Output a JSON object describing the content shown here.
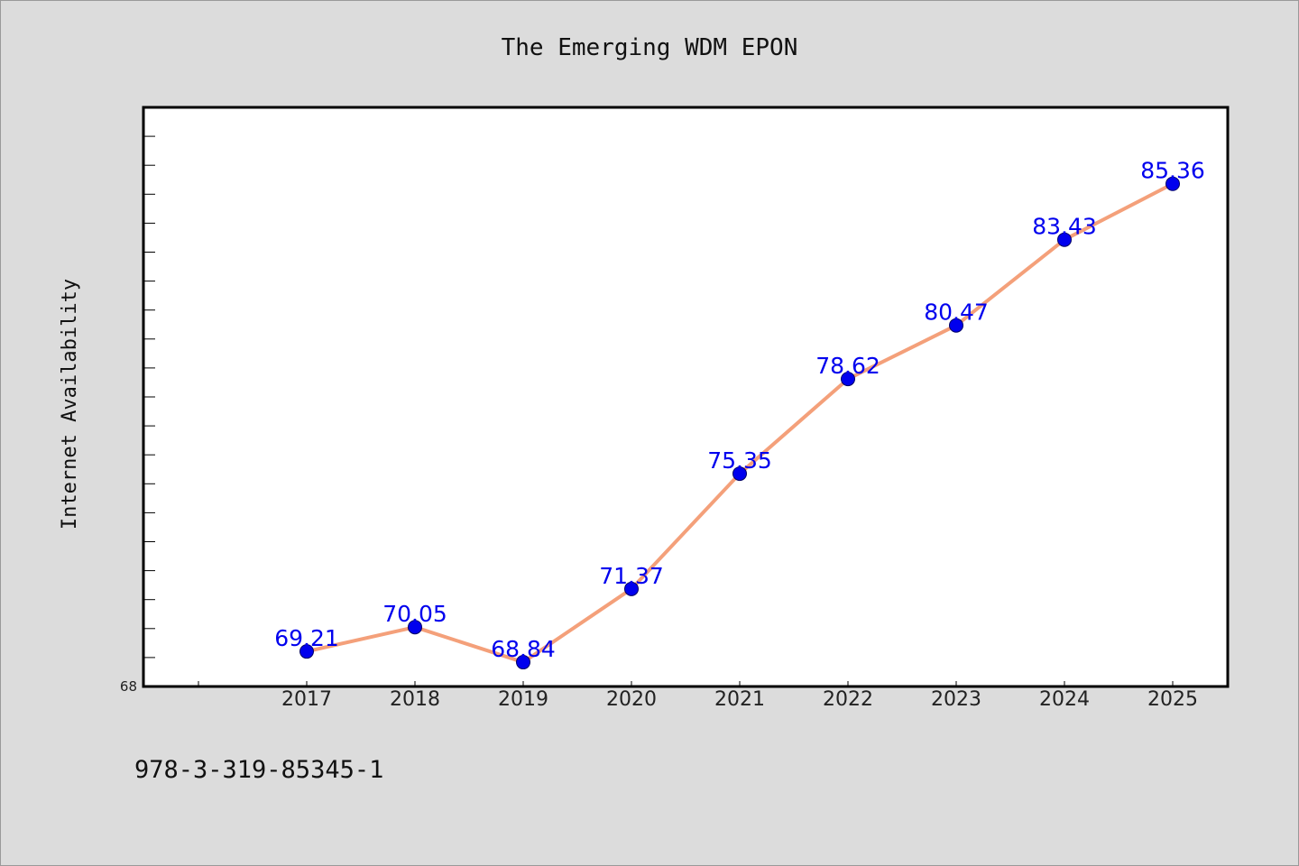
{
  "chart_data": {
    "type": "line",
    "title": "The Emerging WDM EPON",
    "xlabel": "",
    "ylabel": "Internet Availability",
    "categories": [
      "2017",
      "2018",
      "2019",
      "2020",
      "2021",
      "2022",
      "2023",
      "2024",
      "2025"
    ],
    "series": [
      {
        "values": [
          69.21,
          70.05,
          68.84,
          71.37,
          75.35,
          78.62,
          80.47,
          83.43,
          85.36
        ],
        "labels": [
          "69.21",
          "70.05",
          "68.84",
          "71.37",
          "75.35",
          "78.62",
          "80.47",
          "83.43",
          "85.36"
        ]
      }
    ],
    "ylim": [
      68,
      88
    ],
    "ytick_labels": [
      "68"
    ],
    "grid": false,
    "colors": {
      "line": "#f4a07a",
      "marker": "#0000ee",
      "data_label": "#0000ee",
      "plot_bg": "#ffffff",
      "page_bg": "#dcdcdc"
    }
  },
  "footnote": "978-3-319-85345-1"
}
